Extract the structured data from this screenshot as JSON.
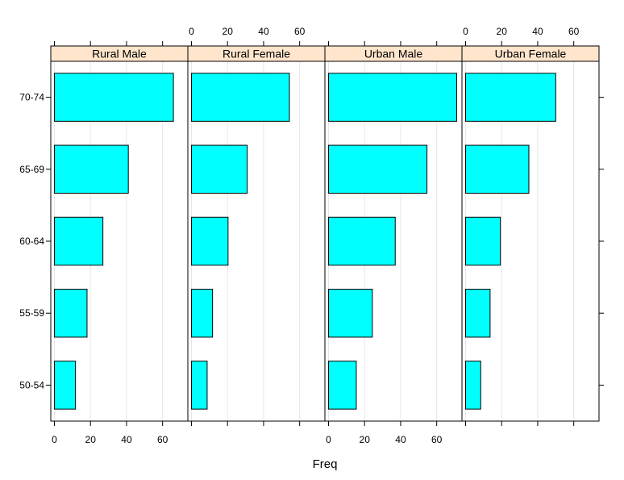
{
  "chart_data": {
    "type": "bar",
    "orientation": "horizontal",
    "xlabel": "Freq",
    "ylabel": "",
    "xlim": [
      -2,
      74
    ],
    "x_ticks": [
      0,
      20,
      40,
      60
    ],
    "categories": [
      "50-54",
      "55-59",
      "60-64",
      "65-69",
      "70-74"
    ],
    "panels": [
      {
        "name": "Rural Male",
        "values": [
          11.7,
          18.1,
          26.9,
          41.0,
          66.0
        ]
      },
      {
        "name": "Rural Female",
        "values": [
          8.7,
          11.7,
          20.3,
          30.9,
          54.3
        ]
      },
      {
        "name": "Urban Male",
        "values": [
          15.4,
          24.3,
          37.0,
          54.6,
          71.1
        ]
      },
      {
        "name": "Urban Female",
        "values": [
          8.4,
          13.6,
          19.3,
          35.1,
          50.0
        ]
      }
    ],
    "colors": {
      "bar_fill": "#00ffff",
      "bar_stroke": "#000000",
      "strip_fill": "#ffe5cc",
      "grid": "#e6e6e6"
    },
    "grid": true
  }
}
